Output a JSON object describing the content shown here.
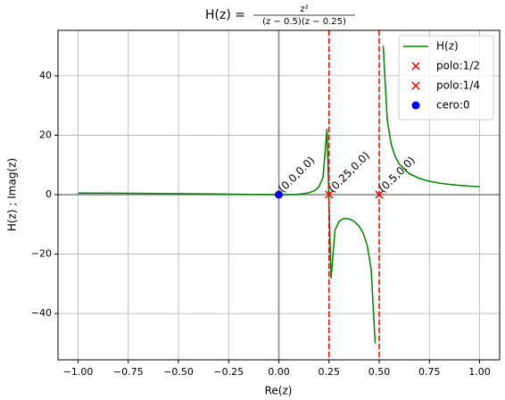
{
  "chart_data": {
    "type": "line",
    "title": {
      "prefix": "H(z) =",
      "numerator": "z²",
      "denominator": "(z − 0.5)(z − 0.25)"
    },
    "x_label": "Re(z)",
    "y_label": "H(z) ; Imag(z)",
    "xlim": [
      -1.1,
      1.1
    ],
    "ylim": [
      -55.6,
      55.3
    ],
    "xticks": [
      {
        "value": -1,
        "label": "−1.00"
      },
      {
        "value": -0.75,
        "label": "−0.75"
      },
      {
        "value": -0.5,
        "label": "−0.50"
      },
      {
        "value": -0.25,
        "label": "−0.25"
      },
      {
        "value": 0,
        "label": "0.00"
      },
      {
        "value": 0.25,
        "label": "0.25"
      },
      {
        "value": 0.5,
        "label": "0.50"
      },
      {
        "value": 0.75,
        "label": "0.75"
      },
      {
        "value": 1,
        "label": "1.00"
      }
    ],
    "yticks": [
      {
        "value": -40,
        "label": "−40"
      },
      {
        "value": -20,
        "label": "−20"
      },
      0,
      20,
      40
    ],
    "grid": true,
    "legend": "upper right",
    "zero_lines": {
      "x": 0,
      "y": 0,
      "color": "#808080"
    },
    "vlines": [
      {
        "x": 0.25,
        "color": "#ff0000"
      },
      {
        "x": 0.5,
        "color": "#ff0000"
      }
    ],
    "series": [
      {
        "name": "H(z)",
        "type": "line",
        "color": "#008000",
        "x": [
          -1,
          -0.75,
          -0.5,
          -0.25,
          0,
          0.02,
          0.04,
          0.06,
          0.08,
          0.1,
          0.12,
          0.14,
          0.16,
          0.18,
          0.2,
          0.22,
          0.24,
          0.26,
          0.28,
          0.3,
          0.32,
          0.34,
          0.36,
          0.38,
          0.4,
          0.42,
          0.44,
          0.46,
          0.48,
          0.5,
          0.52,
          0.54,
          0.56,
          0.58,
          0.6,
          0.65,
          0.7,
          0.75,
          0.8,
          0.85,
          0.9,
          0.95,
          1
        ],
        "values": [
          0.533,
          0.457,
          0.333,
          0.167,
          0,
          0.0036,
          0.0166,
          0.0431,
          0.0896,
          0.1667,
          0.2915,
          0.4949,
          0.8366,
          1.4464,
          2.6667,
          5.7619,
          22.1538,
          -28.1667,
          -11.879,
          -9,
          -8.127,
          -8.028,
          -8.416,
          -9.256,
          -10.667,
          -12.971,
          -16.982,
          -25.19,
          -50.087,
          null,
          50.074,
          25.138,
          16.86,
          12.742,
          10.286,
          7.042,
          5.444,
          4.5,
          3.879,
          3.44,
          3.115,
          2.865,
          2.667
        ]
      },
      {
        "name": "polo:1/2",
        "type": "scatter",
        "marker": "x",
        "color": "#ff0000",
        "x": [
          0.5
        ],
        "values": [
          0
        ]
      },
      {
        "name": "polo:1/4",
        "type": "scatter",
        "marker": "x",
        "color": "#ff0000",
        "x": [
          0.25
        ],
        "values": [
          0
        ]
      },
      {
        "name": "cero:0",
        "type": "scatter",
        "marker": "o",
        "color": "#0000ff",
        "x": [
          0
        ],
        "values": [
          0
        ]
      }
    ],
    "annotations": [
      {
        "text": "(0.0,0.0)",
        "x": 0,
        "y": 0
      },
      {
        "text": "(0.25,0.0)",
        "x": 0.25,
        "y": 0
      },
      {
        "text": "(0.5,0.0)",
        "x": 0.5,
        "y": 0
      }
    ]
  }
}
